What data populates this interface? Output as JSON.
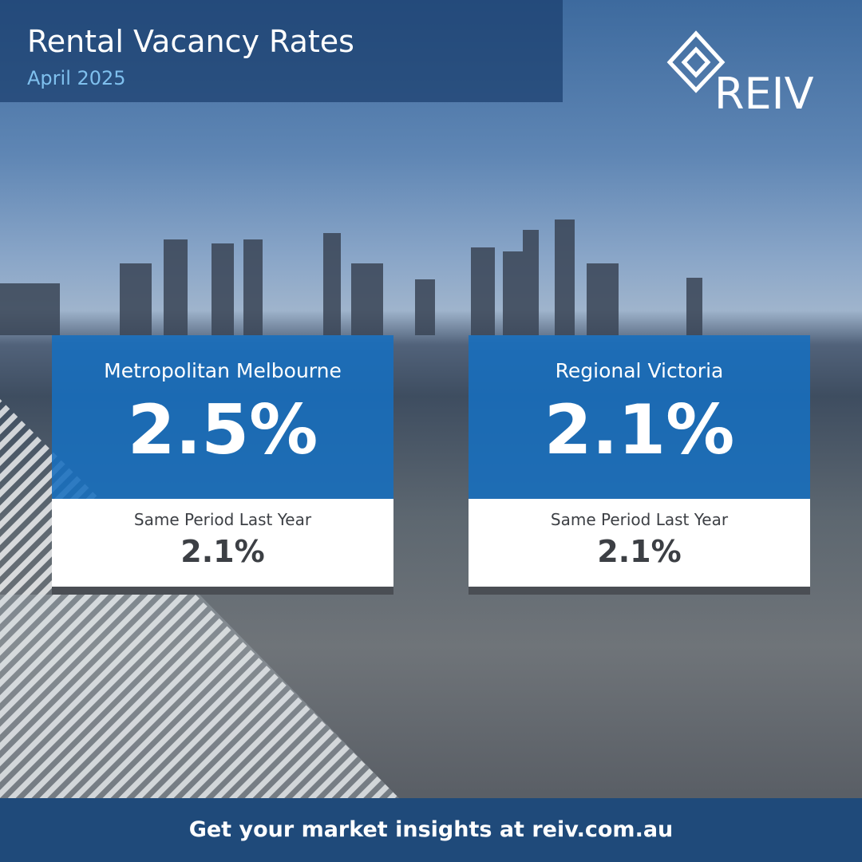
{
  "header": {
    "title": "Rental Vacancy Rates",
    "subtitle": "April 2025",
    "logo": "REIV"
  },
  "cards": [
    {
      "region": "Metropolitan Melbourne",
      "value": "2.5%",
      "comparison_label": "Same Period Last Year",
      "comparison_value": "2.1%"
    },
    {
      "region": "Regional Victoria",
      "value": "2.1%",
      "comparison_label": "Same Period Last Year",
      "comparison_value": "2.1%"
    }
  ],
  "footer": {
    "text": "Get your market insights at reiv.com.au"
  }
}
